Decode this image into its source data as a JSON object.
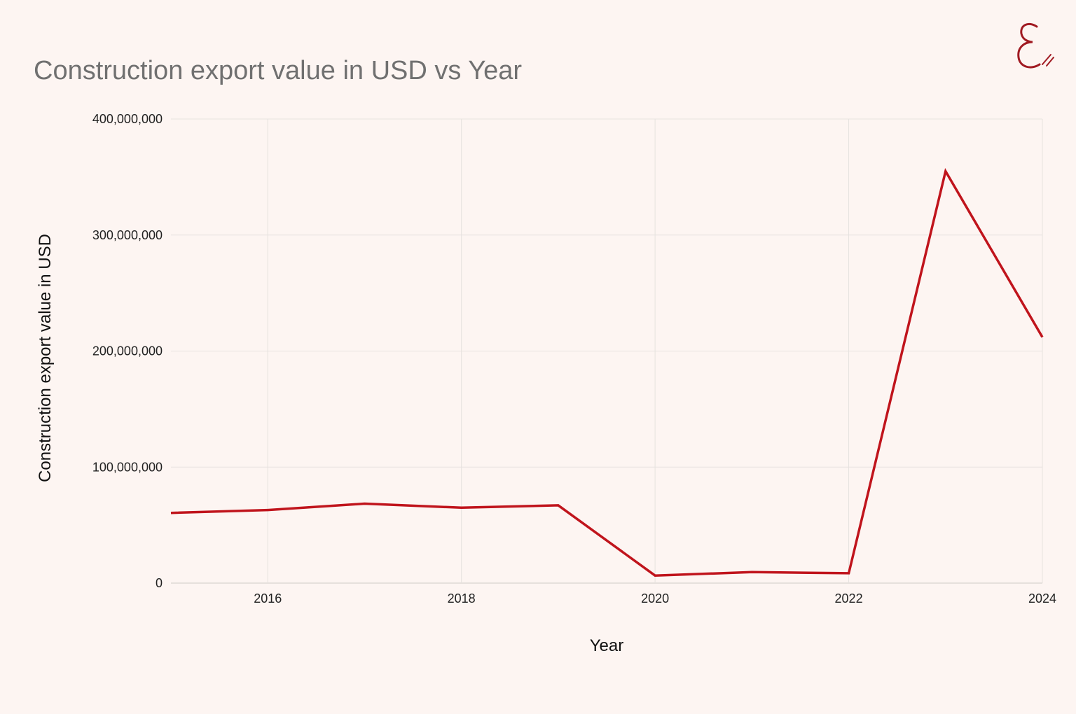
{
  "title": "Construction export value in USD vs Year",
  "colors": {
    "background": "#fdf5f2",
    "line": "#c0141c",
    "grid": "#e6e2df",
    "title": "#707070"
  },
  "logo": {
    "icon": "script-e-logo-icon"
  },
  "chart_data": {
    "type": "line",
    "title": "Construction export value in USD vs Year",
    "xlabel": "Year",
    "ylabel": "Construction export value in USD",
    "xlim": [
      2015,
      2024
    ],
    "ylim": [
      0,
      400000000
    ],
    "x_ticks": [
      2016,
      2018,
      2020,
      2022,
      2024
    ],
    "y_ticks": [
      0,
      100000000,
      200000000,
      300000000,
      400000000
    ],
    "y_tick_labels": [
      "0",
      "100,000,000",
      "200,000,000",
      "300,000,000",
      "400,000,000"
    ],
    "grid": true,
    "legend": "none",
    "series": [
      {
        "x": [
          2015,
          2016,
          2017,
          2018,
          2019,
          2020,
          2021,
          2022,
          2023,
          2024
        ],
        "values": [
          60500000,
          63000000,
          68500000,
          65000000,
          67000000,
          6500000,
          9500000,
          8500000,
          355000000,
          212000000
        ]
      }
    ]
  }
}
